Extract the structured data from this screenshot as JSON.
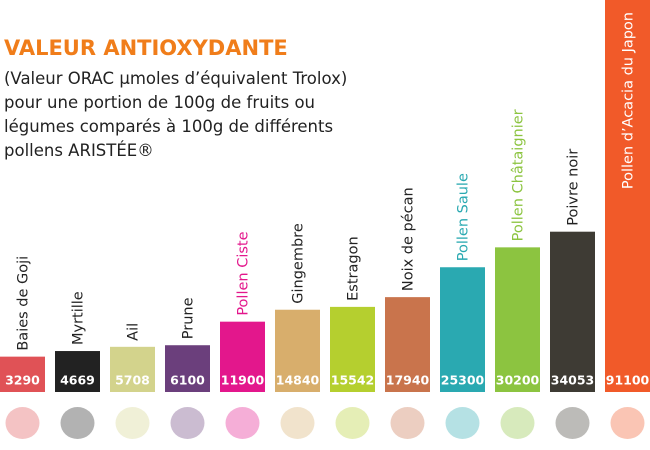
{
  "chart_data": {
    "type": "bar",
    "title": "VALEUR ANTIOXYDANTE",
    "subtitle_lines": [
      "(Valeur ORAC µmoles d’équivalent Trolox)",
      "pour une portion de 100g de fruits ou",
      "légumes comparés à 100g de différents",
      "pollens ARISTÉE®"
    ],
    "categories": [
      "Baies de Goji",
      "Myrtille",
      "Ail",
      "Prune",
      "Pollen Ciste",
      "Gingembre",
      "Estragon",
      "Noix de pécan",
      "Pollen Saule",
      "Pollen Châtaignier",
      "Poivre noir",
      "Pollen d’Acacia du Japon"
    ],
    "values": [
      3290,
      4669,
      5708,
      6100,
      11900,
      14840,
      15542,
      17940,
      25300,
      30200,
      34053,
      91100
    ],
    "colors": [
      "#e05256",
      "#222222",
      "#d3d38c",
      "#6b3f7c",
      "#e3178c",
      "#d8ae6c",
      "#b5cf2f",
      "#c9744c",
      "#2aa9b1",
      "#8cc440",
      "#3e3b34",
      "#f15a29"
    ],
    "label_colors": [
      "#222222",
      "#222222",
      "#222222",
      "#222222",
      "#e3178c",
      "#222222",
      "#222222",
      "#222222",
      "#2aa9b1",
      "#8cc440",
      "#222222",
      "#ffffff"
    ]
  }
}
